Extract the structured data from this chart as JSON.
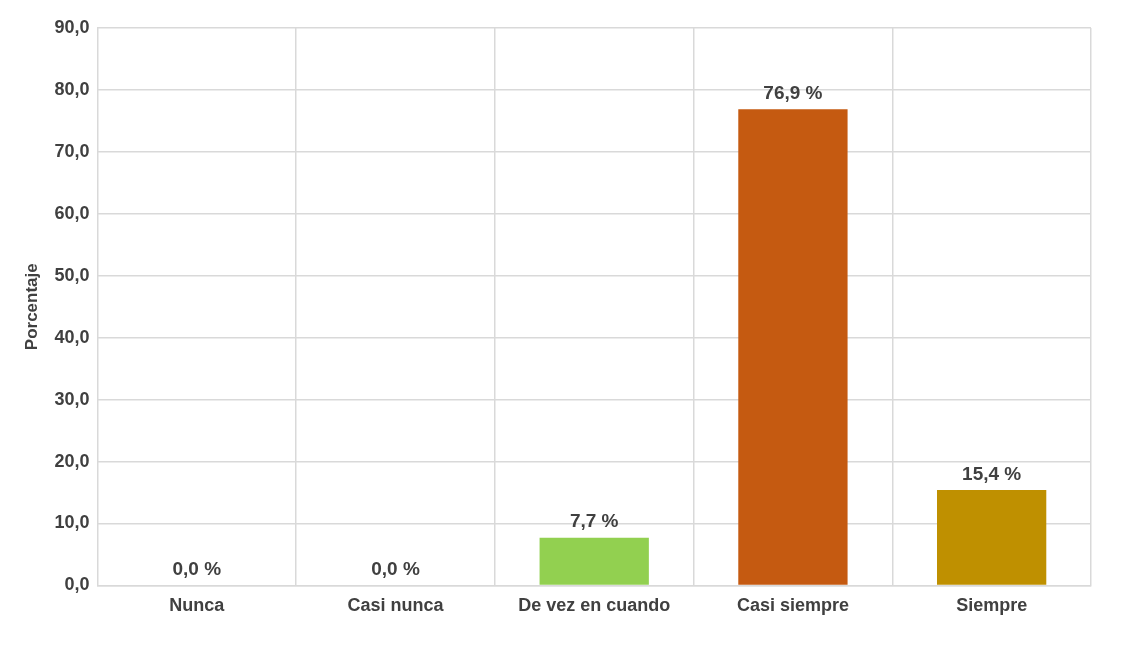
{
  "chart_data": {
    "type": "bar",
    "ylabel": "Porcentaje",
    "categories": [
      "Nunca",
      "Casi nunca",
      "De vez en cuando",
      "Casi siempre",
      "Siempre"
    ],
    "values": [
      0.0,
      0.0,
      7.7,
      76.9,
      15.4
    ],
    "colors": [
      null,
      null,
      "#92d050",
      "#c55a11",
      "#bf9000"
    ],
    "value_labels": [
      "0,0 %",
      "0,0 %",
      "7,7 %",
      "76,9 %",
      "15,4 %"
    ],
    "ylim": [
      0,
      90
    ],
    "yticks": [
      {
        "value": 0,
        "label": "0,0"
      },
      {
        "value": 10,
        "label": "10,0"
      },
      {
        "value": 20,
        "label": "20,0"
      },
      {
        "value": 30,
        "label": "30,0"
      },
      {
        "value": 40,
        "label": "40,0"
      },
      {
        "value": 50,
        "label": "50,0"
      },
      {
        "value": 60,
        "label": "60,0"
      },
      {
        "value": 70,
        "label": "70,0"
      },
      {
        "value": 80,
        "label": "80,0"
      },
      {
        "value": 90,
        "label": "90,0"
      }
    ],
    "grid": true,
    "legend": false
  }
}
